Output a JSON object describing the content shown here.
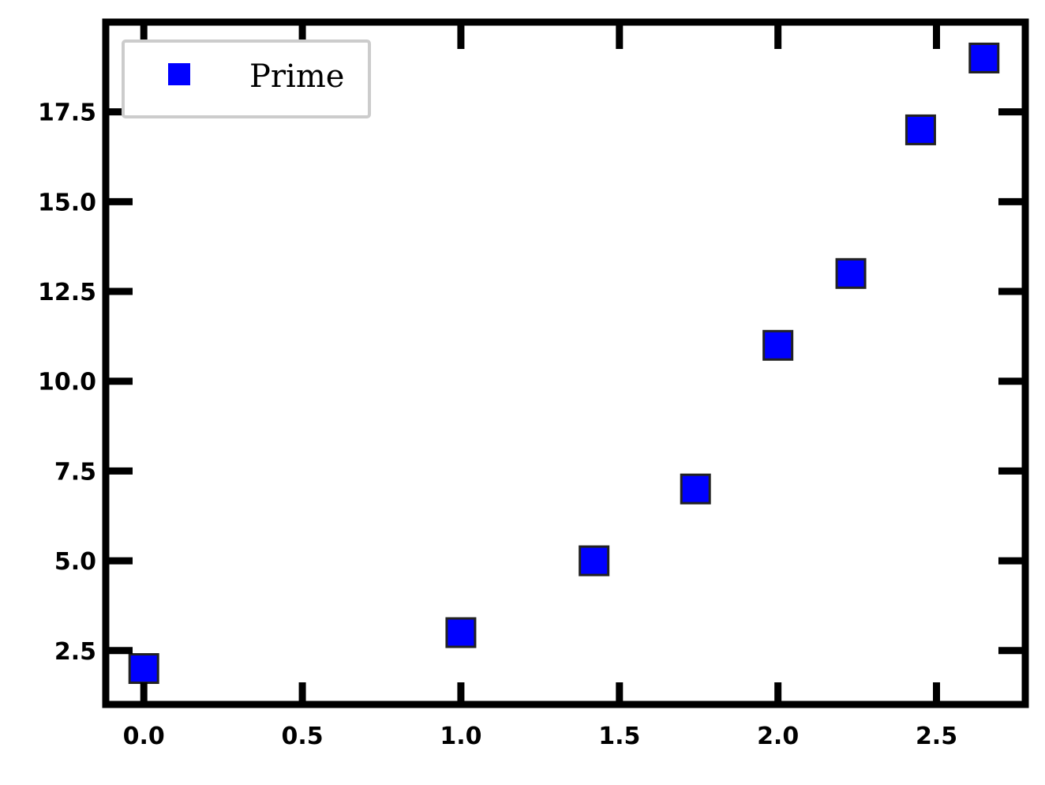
{
  "chart_data": {
    "type": "scatter",
    "title": "",
    "xlabel": "",
    "ylabel": "",
    "xlim": [
      0.0,
      2.8
    ],
    "ylim": [
      1.0,
      19.0
    ],
    "xticks": [
      0.0,
      0.5,
      1.0,
      1.5,
      2.0,
      2.5
    ],
    "xtick_labels": [
      "0.0",
      "0.5",
      "1.0",
      "1.5",
      "2.0",
      "2.5"
    ],
    "yticks": [
      2.5,
      5.0,
      7.5,
      10.0,
      12.5,
      15.0,
      17.5
    ],
    "ytick_labels": [
      "2.5",
      "5.0",
      "7.5",
      "10.0",
      "12.5",
      "15.0",
      "17.5"
    ],
    "grid": false,
    "legend": {
      "placement": "top-left"
    },
    "series": [
      {
        "name": "Prime",
        "color": "#0000ff",
        "edge_color": "#222222",
        "marker": "square",
        "points": [
          {
            "x": 0.0,
            "y": 2.0
          },
          {
            "x": 1.0,
            "y": 3.0
          },
          {
            "x": 1.42,
            "y": 5.0
          },
          {
            "x": 1.74,
            "y": 7.0
          },
          {
            "x": 2.0,
            "y": 11.0
          },
          {
            "x": 2.23,
            "y": 13.0
          },
          {
            "x": 2.45,
            "y": 17.0
          },
          {
            "x": 2.65,
            "y": 19.0
          }
        ]
      }
    ]
  }
}
